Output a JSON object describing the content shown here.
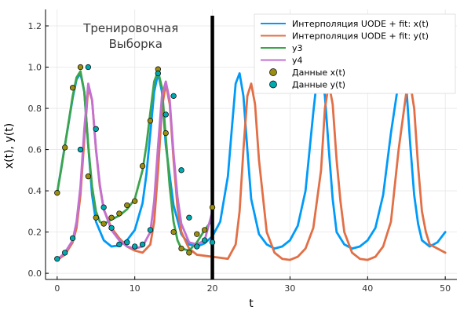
{
  "chart_data": {
    "type": "line",
    "title": "",
    "xlabel": "t",
    "ylabel": "x(t), y(t)",
    "xlim": [
      -1.5,
      51.5
    ],
    "ylim": [
      -0.03,
      1.28
    ],
    "x_ticks": [
      0,
      10,
      20,
      30,
      40,
      50
    ],
    "x_tick_labels": [
      "0",
      "10",
      "20",
      "30",
      "40",
      "50"
    ],
    "y_ticks": [
      0.0,
      0.2,
      0.4,
      0.6,
      0.8,
      1.0,
      1.2
    ],
    "y_tick_labels": [
      "0.0",
      "0.2",
      "0.4",
      "0.6",
      "0.8",
      "1.0",
      "1.2"
    ],
    "grid": true,
    "legend_position": "top-right",
    "annotation": {
      "line1": "Тренировочная",
      "line2": "Выборка",
      "x": 9.5,
      "y": 1.17
    },
    "vline": {
      "x": 20,
      "color": "#000000"
    },
    "series": [
      {
        "name": "Интерполяция UODE + fit: x(t)",
        "kind": "line",
        "color": "#009af9",
        "x": [
          0,
          1,
          2,
          2.5,
          3,
          3.5,
          4,
          4.5,
          5,
          6,
          7,
          8,
          9,
          10,
          11,
          11.5,
          12,
          12.5,
          13,
          13.5,
          14,
          15,
          16,
          17,
          18,
          19,
          20,
          21,
          22,
          22.5,
          23,
          23.5,
          24,
          24.5,
          25,
          26,
          27,
          28,
          29,
          30,
          31,
          32,
          33,
          33.5,
          34,
          34.5,
          35,
          35.5,
          36,
          37,
          38,
          39,
          40,
          41,
          42,
          43,
          44,
          44.5,
          45,
          45.5,
          46,
          46.5,
          47,
          48,
          49,
          50
        ],
        "y": [
          0.39,
          0.62,
          0.85,
          0.94,
          0.97,
          0.88,
          0.62,
          0.38,
          0.25,
          0.16,
          0.13,
          0.135,
          0.16,
          0.21,
          0.34,
          0.48,
          0.68,
          0.88,
          0.97,
          0.88,
          0.62,
          0.33,
          0.19,
          0.14,
          0.13,
          0.145,
          0.18,
          0.25,
          0.47,
          0.7,
          0.92,
          0.97,
          0.86,
          0.6,
          0.36,
          0.19,
          0.14,
          0.12,
          0.13,
          0.16,
          0.23,
          0.4,
          0.78,
          0.95,
          0.99,
          0.86,
          0.6,
          0.36,
          0.2,
          0.14,
          0.12,
          0.13,
          0.16,
          0.22,
          0.38,
          0.68,
          0.93,
          0.99,
          0.9,
          0.62,
          0.38,
          0.24,
          0.16,
          0.13,
          0.15,
          0.2
        ]
      },
      {
        "name": "Интерполяция UODE + fit: y(t)",
        "kind": "line",
        "color": "#e26f46",
        "x": [
          0,
          1,
          2,
          2.5,
          3,
          3.5,
          4,
          4.5,
          5,
          5.5,
          6,
          7,
          8,
          9,
          10,
          11,
          12,
          12.5,
          13,
          13.5,
          14,
          14.5,
          15,
          15.5,
          16,
          17,
          18,
          19,
          20,
          21,
          22,
          23,
          23.5,
          24,
          24.5,
          25,
          25.5,
          26,
          27,
          28,
          29,
          30,
          31,
          32,
          33,
          34,
          34.5,
          35,
          35.5,
          36,
          36.5,
          37,
          38,
          39,
          40,
          41,
          42,
          43,
          44,
          45,
          45.5,
          46,
          46.5,
          47,
          47.5,
          48,
          49,
          50
        ],
        "y": [
          0.065,
          0.09,
          0.15,
          0.22,
          0.38,
          0.65,
          0.9,
          0.84,
          0.6,
          0.42,
          0.31,
          0.22,
          0.17,
          0.13,
          0.11,
          0.1,
          0.14,
          0.25,
          0.5,
          0.8,
          0.92,
          0.82,
          0.55,
          0.32,
          0.2,
          0.12,
          0.09,
          0.085,
          0.08,
          0.075,
          0.07,
          0.14,
          0.3,
          0.6,
          0.86,
          0.92,
          0.82,
          0.55,
          0.2,
          0.1,
          0.07,
          0.065,
          0.08,
          0.12,
          0.22,
          0.5,
          0.8,
          0.92,
          0.82,
          0.55,
          0.35,
          0.2,
          0.1,
          0.07,
          0.065,
          0.08,
          0.13,
          0.25,
          0.6,
          0.88,
          0.92,
          0.8,
          0.52,
          0.3,
          0.2,
          0.14,
          0.12,
          0.1
        ]
      },
      {
        "name": "y3",
        "kind": "line",
        "color": "#3da44d",
        "x": [
          0,
          0.5,
          1,
          1.5,
          2,
          2.5,
          3,
          3.5,
          4,
          4.5,
          5,
          5.5,
          6,
          7,
          8,
          9,
          10,
          11,
          11.5,
          12,
          12.5,
          13,
          13.5,
          14,
          14.5,
          15,
          15.5,
          16,
          17,
          18,
          19,
          20
        ],
        "y": [
          0.39,
          0.5,
          0.62,
          0.74,
          0.86,
          0.95,
          0.98,
          0.88,
          0.62,
          0.42,
          0.3,
          0.25,
          0.24,
          0.26,
          0.28,
          0.31,
          0.36,
          0.5,
          0.62,
          0.78,
          0.93,
          0.98,
          0.9,
          0.66,
          0.42,
          0.25,
          0.16,
          0.12,
          0.11,
          0.15,
          0.21,
          0.26
        ]
      },
      {
        "name": "y4",
        "kind": "line",
        "color": "#c271d2",
        "x": [
          0,
          1,
          2,
          2.5,
          3,
          3.5,
          4,
          4.5,
          5,
          5.5,
          6,
          7,
          8,
          9,
          10,
          11,
          12,
          12.5,
          13,
          13.5,
          14,
          14.5,
          15,
          15.5,
          16,
          17,
          18,
          19,
          20
        ],
        "y": [
          0.065,
          0.1,
          0.16,
          0.25,
          0.42,
          0.7,
          0.92,
          0.84,
          0.6,
          0.43,
          0.31,
          0.21,
          0.16,
          0.13,
          0.12,
          0.13,
          0.2,
          0.35,
          0.62,
          0.86,
          0.93,
          0.84,
          0.58,
          0.37,
          0.24,
          0.15,
          0.14,
          0.16,
          0.3
        ]
      },
      {
        "name": "Данные x(t)",
        "kind": "scatter",
        "color": "#9b8d12",
        "x": [
          0,
          1,
          2,
          3,
          4,
          5,
          6,
          7,
          8,
          9,
          10,
          11,
          12,
          13,
          14,
          15,
          16,
          17,
          18,
          19,
          20
        ],
        "y": [
          0.39,
          0.61,
          0.9,
          1.0,
          0.47,
          0.27,
          0.24,
          0.27,
          0.29,
          0.33,
          0.35,
          0.52,
          0.74,
          0.99,
          0.68,
          0.2,
          0.12,
          0.1,
          0.19,
          0.21,
          0.32
        ]
      },
      {
        "name": "Данные y(t)",
        "kind": "scatter",
        "color": "#00a9ad",
        "x": [
          0,
          1,
          2,
          3,
          4,
          5,
          6,
          7,
          8,
          9,
          10,
          11,
          12,
          13,
          14,
          15,
          16,
          17,
          18,
          19,
          20
        ],
        "y": [
          0.07,
          0.1,
          0.17,
          0.6,
          1.0,
          0.7,
          0.32,
          0.22,
          0.14,
          0.15,
          0.13,
          0.14,
          0.21,
          0.97,
          0.77,
          0.86,
          0.5,
          0.27,
          0.13,
          0.16,
          0.15
        ]
      }
    ]
  }
}
